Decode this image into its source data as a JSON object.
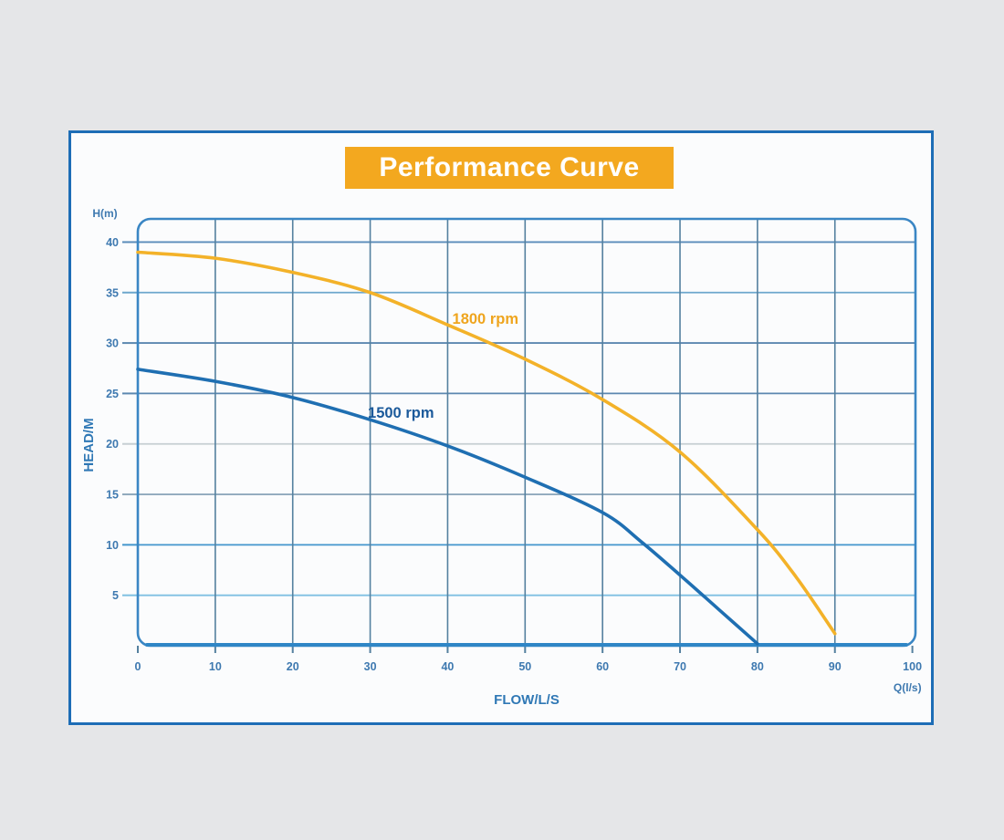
{
  "panel": {
    "title": "Performance Curve",
    "title_bg": "#f3a81f",
    "title_color": "#ffffff",
    "border_color": "#1d6db6"
  },
  "chart_data": {
    "type": "line",
    "title": "Performance Curve",
    "x_axis_label": "FLOW/L/S",
    "y_axis_label": "HEAD/M",
    "x_unit_label": "Q(l/s)",
    "y_unit_label": "H(m)",
    "xlim": [
      0,
      100.4
    ],
    "ylim": [
      0,
      42.3
    ],
    "x_ticks": [
      0,
      10,
      20,
      30,
      40,
      50,
      60,
      70,
      80,
      90,
      100
    ],
    "y_ticks": [
      5,
      10,
      15,
      20,
      25,
      30,
      35,
      40
    ],
    "grid": true,
    "legend_position": "inline-labels",
    "colors": {
      "plot_border": "#3a86c4",
      "bottom_axis": "#2f86c6",
      "v_grid": "#54809f",
      "tick_text": "#3e79b0",
      "h_grid": {
        "5": "#7fc0e2",
        "10": "#4496cd",
        "15": "#8fa9bc",
        "20": "#c6ced3",
        "25": "#5c88b0",
        "30": "#5c88b0",
        "35": "#6ea7cd",
        "40": "#5a8cba"
      }
    },
    "series": [
      {
        "name": "1800 rpm",
        "color": "#f3b229",
        "label_color": "#efa51e",
        "label_pos": [
          40.6,
          31.9
        ],
        "points": [
          [
            0,
            39
          ],
          [
            10,
            38.4
          ],
          [
            20,
            37
          ],
          [
            30,
            35
          ],
          [
            40,
            31.8
          ],
          [
            50,
            28.4
          ],
          [
            60,
            24.4
          ],
          [
            70,
            19.2
          ],
          [
            80,
            11.5
          ],
          [
            85,
            6.8
          ],
          [
            90,
            1.2
          ]
        ]
      },
      {
        "name": "1500 rpm",
        "color": "#1f6fb2",
        "label_color": "#1b5a9b",
        "label_pos": [
          29.7,
          22.6
        ],
        "points": [
          [
            0,
            27.4
          ],
          [
            10,
            26.2
          ],
          [
            20,
            24.6
          ],
          [
            30,
            22.4
          ],
          [
            40,
            19.8
          ],
          [
            50,
            16.7
          ],
          [
            60,
            13.2
          ],
          [
            65,
            10.3
          ],
          [
            70,
            7
          ],
          [
            75,
            3.6
          ],
          [
            80,
            0.2
          ]
        ]
      }
    ]
  }
}
